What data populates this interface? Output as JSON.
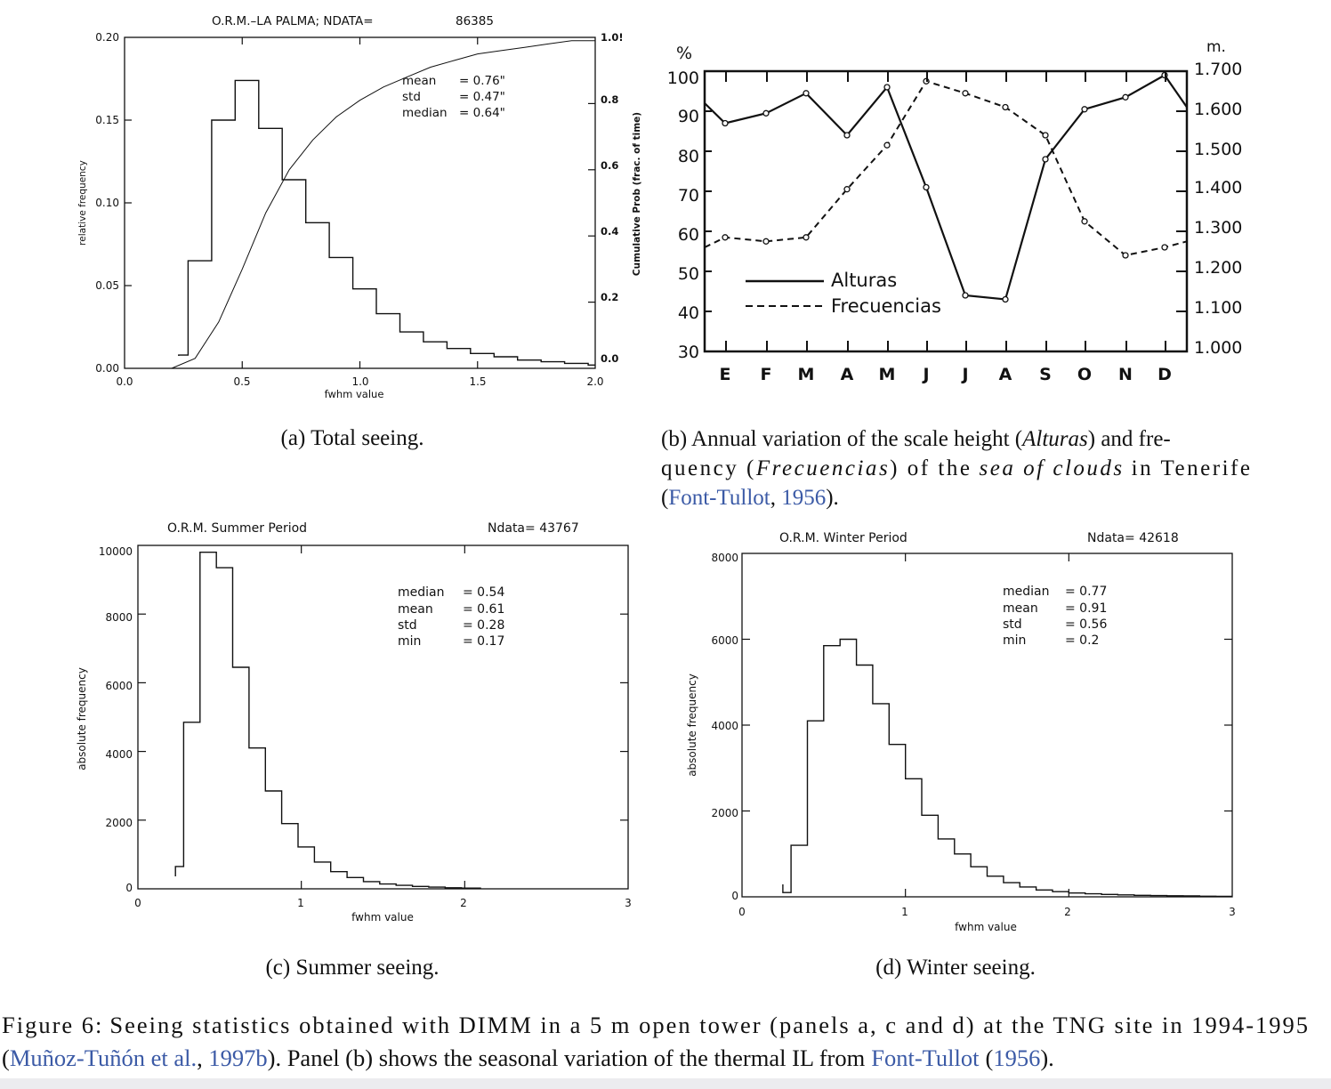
{
  "figure": {
    "caption_label": "Figure 6:",
    "caption_text_1": "Seeing statistics obtained with DIMM in a 5 m open tower (panels a, c and d) at the TNG site in 1994-1995",
    "caption_ref_1": "Muñoz-Tuñón et al.",
    "caption_ref_1_year": "1997b",
    "caption_text_2": ". Panel (b) shows the seasonal variation of the thermal IL from",
    "caption_ref_2": "Font-Tullot",
    "caption_ref_2_year": "1956",
    "caption_end": ")."
  },
  "subcaptions": {
    "a": "(a) Total seeing.",
    "b_1": "(b) Annual variation of the scale height (",
    "b_alturas": "Alturas",
    "b_2": ") and fre-",
    "b_3": "quency (",
    "b_frecuencias": "Frecuencias",
    "b_4": ") of the",
    "b_sea": "sea of clouds",
    "b_5": "in Tenerife",
    "b_ref": "Font-Tullot",
    "b_ref_year": "1956",
    "c": "(c) Summer seeing.",
    "d": "(d) Winter seeing."
  },
  "chart_data": [
    {
      "id": "a",
      "type": "bar",
      "title": "O.R.M.–LA PALMA; NDATA=",
      "ndata": "86385",
      "xlabel": "fwhm value",
      "ylabel": "relative frequency",
      "y2label": "Cumulative Prob (frac. of time)",
      "xlim": [
        0.0,
        2.0
      ],
      "ylim": [
        0.0,
        0.2
      ],
      "y2lim": [
        0.0,
        1.0
      ],
      "xticks": [
        "0.0",
        "0.5",
        "1.0",
        "1.5",
        "2.0"
      ],
      "yticks": [
        "0.00",
        "0.05",
        "0.10",
        "0.15",
        "0.20"
      ],
      "y2ticks": [
        "0.0",
        "0.2",
        "0.4",
        "0.6",
        "0.8",
        "1.0!"
      ],
      "stats": [
        {
          "name": "mean",
          "value": "= 0.76\""
        },
        {
          "name": "std",
          "value": "= 0.47\""
        },
        {
          "name": "median",
          "value": "= 0.64\""
        }
      ],
      "bin_edges": [
        0.23,
        0.27,
        0.37,
        0.47,
        0.57,
        0.67,
        0.77,
        0.87,
        0.97,
        1.07,
        1.17,
        1.27,
        1.37,
        1.47,
        1.57,
        1.67,
        1.77,
        1.87,
        1.97,
        2.0
      ],
      "values": [
        0.008,
        0.065,
        0.15,
        0.174,
        0.145,
        0.114,
        0.088,
        0.067,
        0.048,
        0.033,
        0.022,
        0.016,
        0.012,
        0.009,
        0.007,
        0.005,
        0.004,
        0.003,
        0.002
      ],
      "cumulative_x": [
        0.2,
        0.3,
        0.4,
        0.5,
        0.6,
        0.7,
        0.8,
        0.9,
        1.0,
        1.1,
        1.2,
        1.3,
        1.4,
        1.5,
        1.6,
        1.7,
        1.8,
        1.9,
        2.0
      ],
      "cumulative_y": [
        0.0,
        0.03,
        0.14,
        0.3,
        0.47,
        0.6,
        0.69,
        0.76,
        0.81,
        0.85,
        0.88,
        0.91,
        0.93,
        0.95,
        0.96,
        0.97,
        0.98,
        0.99,
        0.99
      ]
    },
    {
      "id": "b",
      "type": "line",
      "y_unit_left": "%",
      "y_unit_right": "m.",
      "categories": [
        "E",
        "F",
        "M",
        "A",
        "M",
        "J",
        "J",
        "A",
        "S",
        "O",
        "N",
        "D"
      ],
      "ylim": [
        30,
        100
      ],
      "y2lim": [
        1000,
        1700
      ],
      "yticks": [
        "30",
        "40",
        "50",
        "60",
        "70",
        "80",
        "90",
        "100"
      ],
      "y2ticks": [
        "1.000",
        "1.100",
        "1.200",
        "1.300",
        "1.400",
        "1.500",
        "1.600",
        "1.700"
      ],
      "series": [
        {
          "name": "Alturas",
          "style": "solid",
          "axis": "right",
          "start": 1620,
          "end": 1610,
          "values": [
            1570,
            1595,
            1645,
            1540,
            1660,
            1410,
            1140,
            1130,
            1480,
            1605,
            1635,
            1690
          ]
        },
        {
          "name": "Frecuencias",
          "style": "dashed",
          "axis": "left",
          "start": 56,
          "end": 57.5,
          "values": [
            58.5,
            57.5,
            58.5,
            70.5,
            81.5,
            97.5,
            94.5,
            91,
            84,
            62.5,
            54,
            56
          ]
        }
      ]
    },
    {
      "id": "c",
      "type": "bar",
      "title": "O.R.M.  Summer Period",
      "ndata_label": "Ndata= 43767",
      "xlabel": "fwhm value",
      "ylabel": "absolute frequency",
      "xlim": [
        0,
        3
      ],
      "ylim": [
        0,
        10000
      ],
      "xticks": [
        "0",
        "1",
        "2",
        "3"
      ],
      "yticks": [
        "0",
        "2000",
        "4000",
        "6000",
        "8000",
        "10000"
      ],
      "stats": [
        {
          "name": "median",
          "value": "= 0.54"
        },
        {
          "name": "mean",
          "value": "= 0.61"
        },
        {
          "name": "std",
          "value": "= 0.28"
        },
        {
          "name": "min",
          "value": "= 0.17"
        }
      ],
      "bin_edges": [
        0.23,
        0.28,
        0.38,
        0.48,
        0.58,
        0.68,
        0.78,
        0.88,
        0.98,
        1.08,
        1.18,
        1.28,
        1.38,
        1.48,
        1.58,
        1.68,
        1.78,
        1.88,
        1.98,
        2.1
      ],
      "values": [
        650,
        4850,
        9800,
        9350,
        6450,
        4100,
        2850,
        1900,
        1220,
        780,
        500,
        330,
        210,
        140,
        100,
        70,
        50,
        30,
        20
      ]
    },
    {
      "id": "d",
      "type": "bar",
      "title": "O.R.M.  Winter Period",
      "ndata_label": "Ndata= 42618",
      "xlabel": "fwhm value",
      "ylabel": "absolute frequency",
      "xlim": [
        0,
        3
      ],
      "ylim": [
        0,
        8000
      ],
      "xticks": [
        "0",
        "1",
        "2",
        "3"
      ],
      "yticks": [
        "0",
        "2000",
        "4000",
        "6000",
        "8000"
      ],
      "stats": [
        {
          "name": "median",
          "value": "= 0.77"
        },
        {
          "name": "mean",
          "value": "= 0.91"
        },
        {
          "name": "std",
          "value": "= 0.56"
        },
        {
          "name": "min",
          "value": "= 0.2"
        }
      ],
      "bin_edges": [
        0.25,
        0.3,
        0.4,
        0.5,
        0.6,
        0.7,
        0.8,
        0.9,
        1.0,
        1.1,
        1.2,
        1.3,
        1.4,
        1.5,
        1.6,
        1.7,
        1.8,
        1.9,
        2.0,
        2.1,
        2.2,
        2.3,
        2.4,
        2.5,
        2.6,
        2.7,
        2.8,
        2.9,
        3.0
      ],
      "values": [
        100,
        1200,
        4100,
        5850,
        6000,
        5400,
        4500,
        3550,
        2750,
        1900,
        1350,
        1000,
        700,
        480,
        330,
        230,
        160,
        120,
        90,
        70,
        55,
        45,
        35,
        30,
        25,
        20,
        15,
        10
      ]
    }
  ]
}
